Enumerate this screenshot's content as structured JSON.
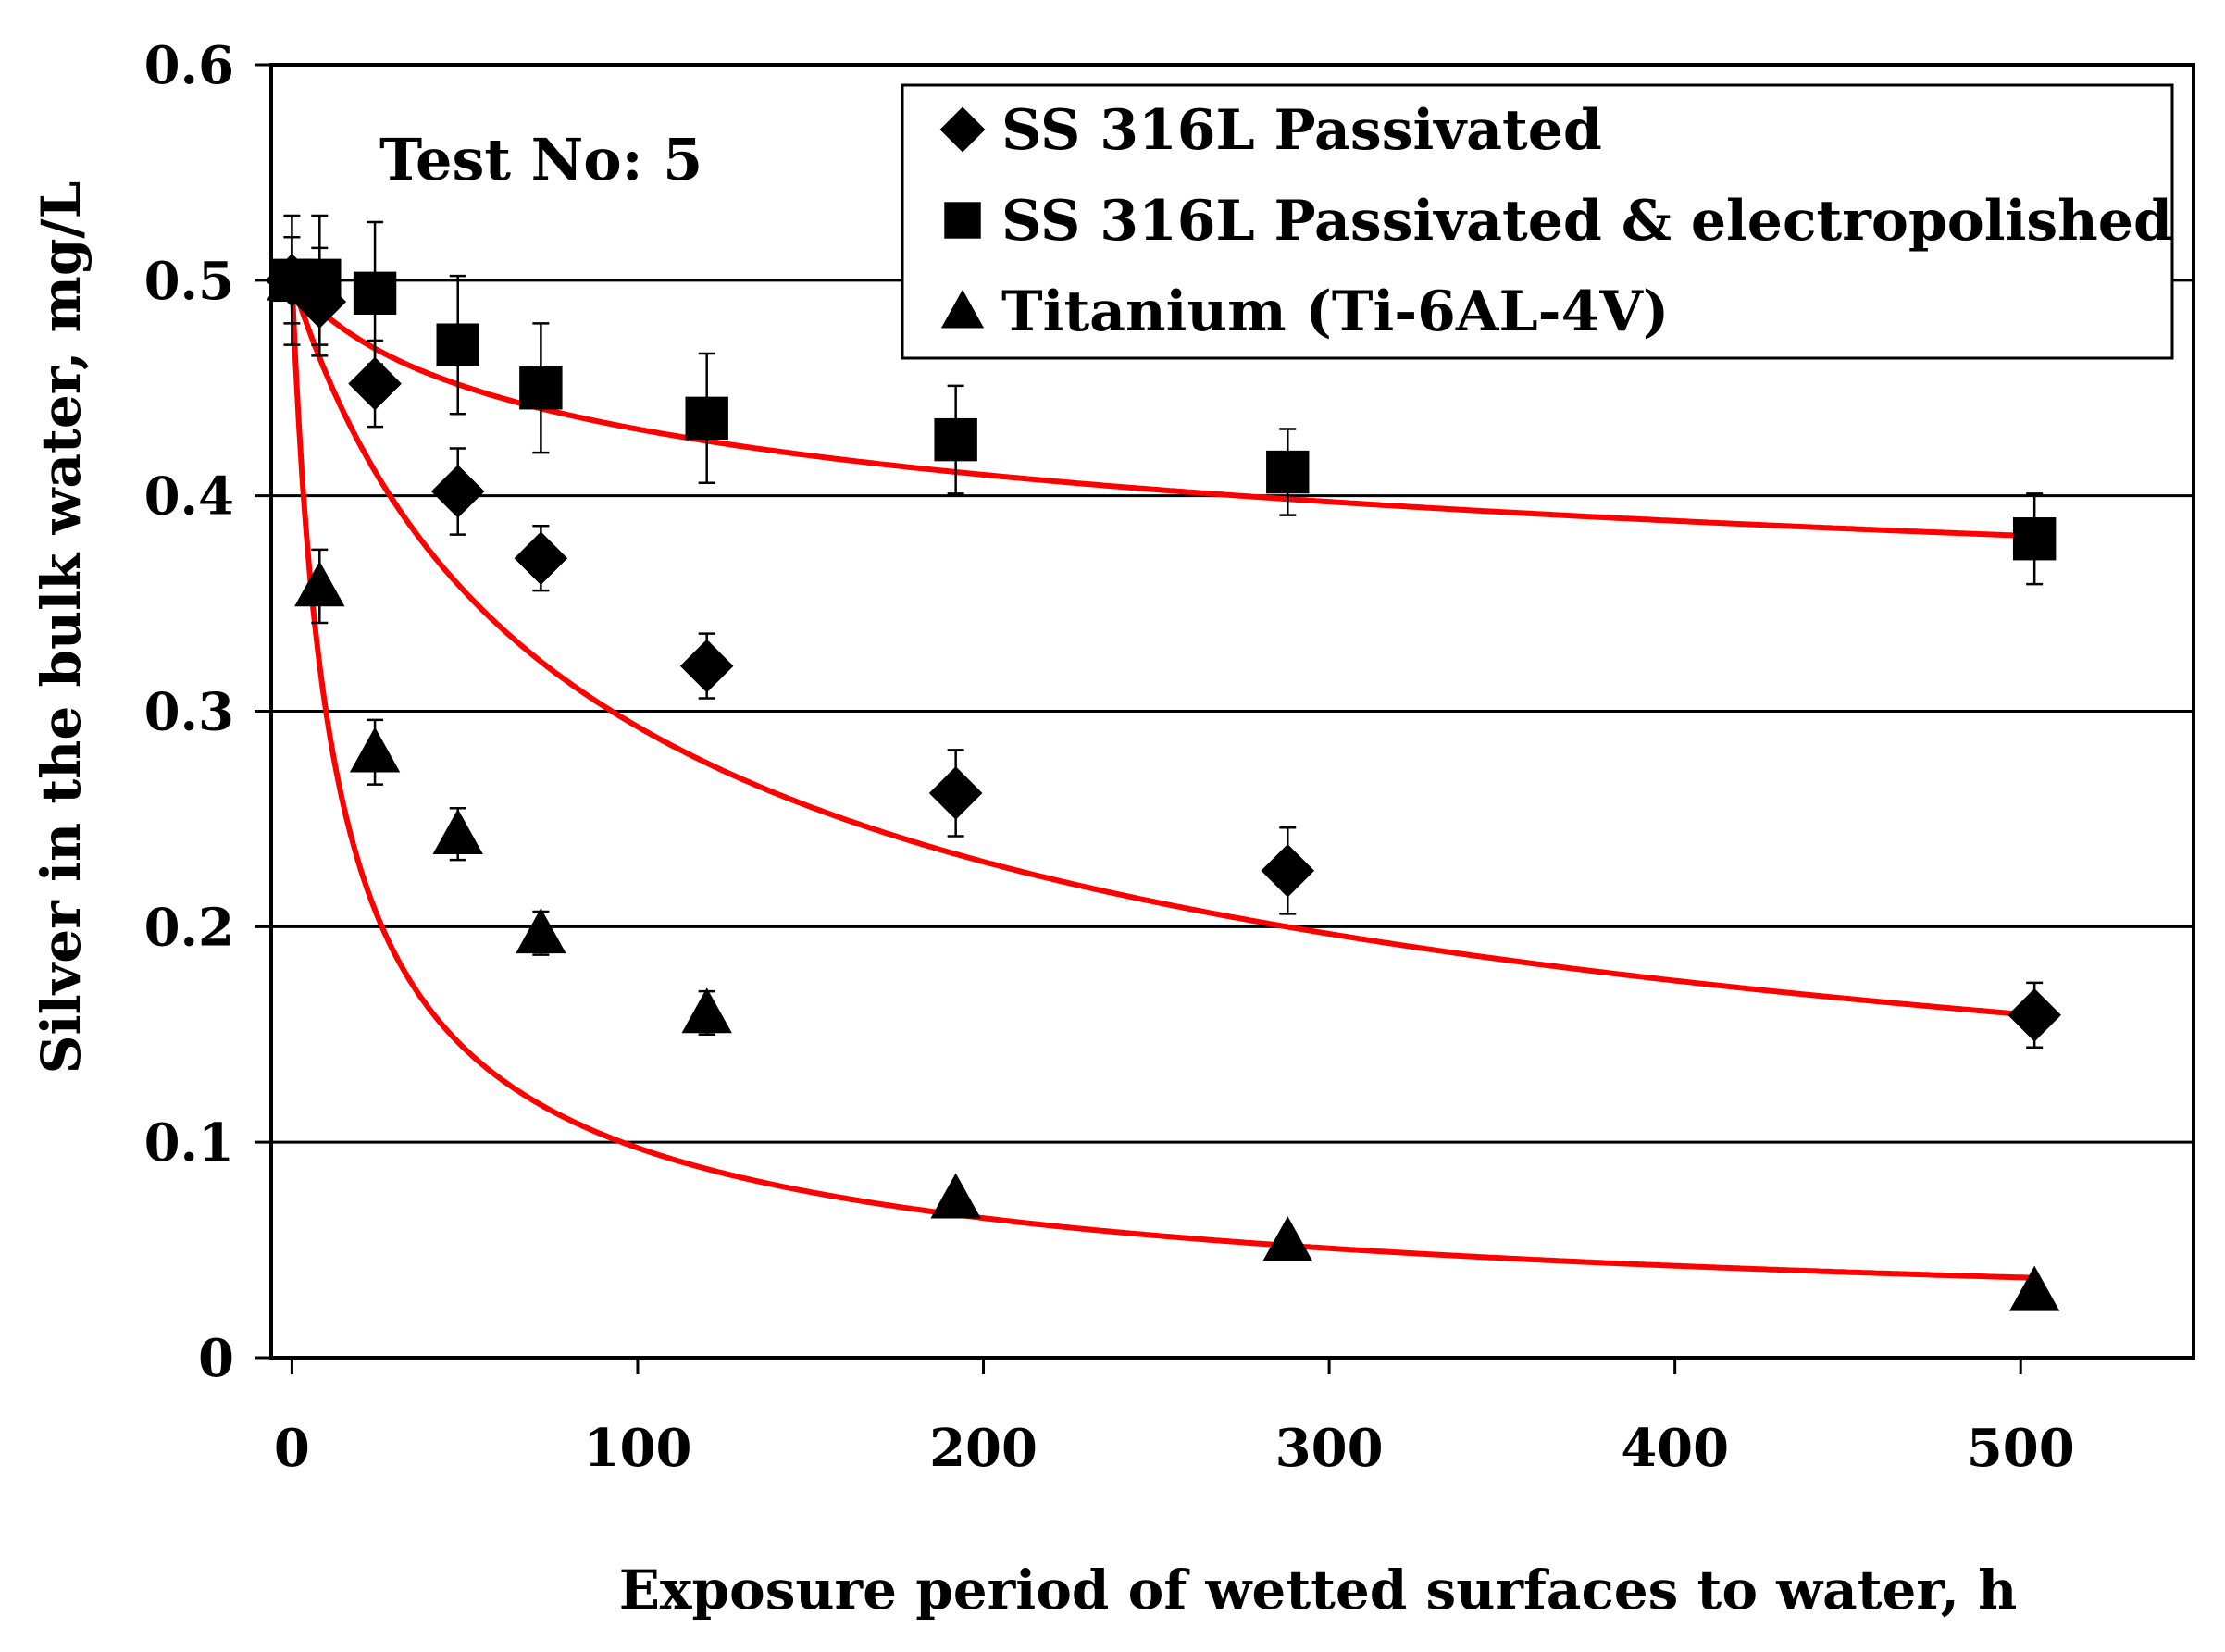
{
  "chart_data": {
    "type": "scatter",
    "title": "",
    "annotation": "Test No: 5",
    "xlabel": "Exposure period of wetted surfaces to water, h",
    "ylabel": "Silver in the bulk water, mg/L",
    "xlim": [
      -6,
      550
    ],
    "ylim": [
      0,
      0.6
    ],
    "x_ticks": [
      0,
      100,
      200,
      300,
      400,
      500
    ],
    "x_tick_labels": [
      "0",
      "100",
      "200",
      "300",
      "400",
      "500"
    ],
    "y_ticks": [
      0,
      0.1,
      0.2,
      0.3,
      0.4,
      0.5,
      0.6
    ],
    "y_tick_labels": [
      "0",
      "0.1",
      "0.2",
      "0.3",
      "0.4",
      "0.5",
      "0.6"
    ],
    "grid": "horizontal",
    "legend_position": "top-right",
    "fit_color": "#ff0000",
    "marker_color": "#000000",
    "series": [
      {
        "name": "SS 316L Passivated",
        "marker": "diamond",
        "x": [
          0,
          8,
          24,
          48,
          72,
          120,
          192,
          288,
          504
        ],
        "y": [
          0.5,
          0.49,
          0.452,
          0.402,
          0.371,
          0.321,
          0.262,
          0.226,
          0.159
        ],
        "err": [
          0.02,
          0.025,
          0.02,
          0.02,
          0.015,
          0.015,
          0.02,
          0.02,
          0.015
        ],
        "fit": {
          "model": "a/(1+b*x)^c",
          "a": 0.5,
          "b": 0.022,
          "c": 0.46
        }
      },
      {
        "name": "SS 316L Passivated & electropolished",
        "marker": "square",
        "x": [
          0,
          8,
          24,
          48,
          72,
          120,
          192,
          288,
          504
        ],
        "y": [
          0.5,
          0.5,
          0.494,
          0.47,
          0.45,
          0.436,
          0.426,
          0.411,
          0.38
        ],
        "err": [
          0.03,
          0.03,
          0.033,
          0.032,
          0.03,
          0.03,
          0.025,
          0.02,
          0.021
        ],
        "fit": {
          "model": "a/(1+b*x)^c",
          "a": 0.5,
          "b": 0.05,
          "c": 0.083
        }
      },
      {
        "name": "Titanium (Ti-6AL-4V)",
        "marker": "triangle",
        "x": [
          0,
          8,
          24,
          48,
          72,
          120,
          192,
          288,
          504
        ],
        "y": [
          0.5,
          0.358,
          0.281,
          0.243,
          0.197,
          0.16,
          0.074,
          0.054,
          0.031
        ],
        "err": [
          0.0,
          0.017,
          0.015,
          0.012,
          0.01,
          0.01,
          0.0,
          0.0,
          0.0
        ],
        "fit": {
          "model": "a/(1+b*x)^c",
          "a": 0.5,
          "b": 0.13,
          "c": 0.62
        }
      }
    ]
  }
}
